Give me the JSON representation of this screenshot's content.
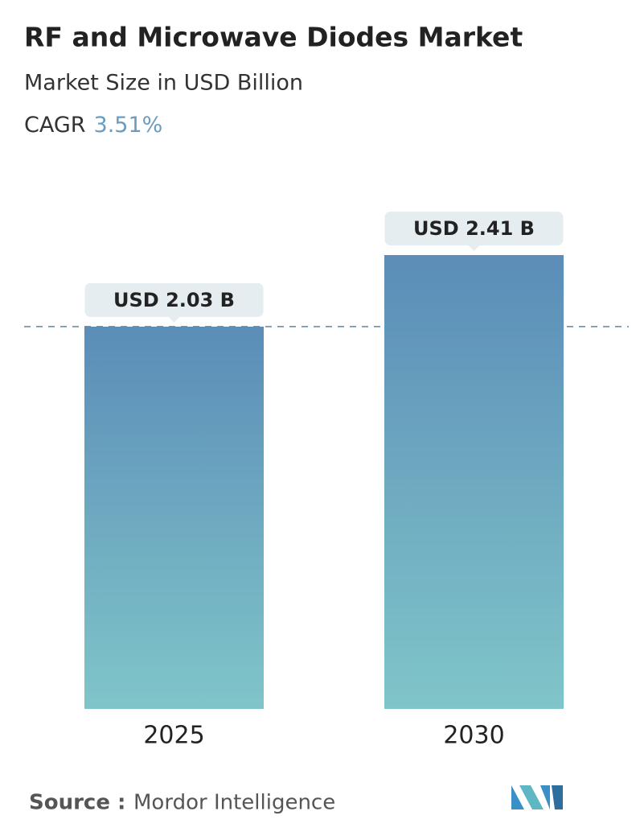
{
  "chart_data": {
    "type": "bar",
    "title": "RF and Microwave Diodes Market",
    "subtitle": "Market Size in USD Billion",
    "cagr_label": "CAGR",
    "cagr": "3.51%",
    "categories": [
      "2025",
      "2030"
    ],
    "values": [
      2.03,
      2.41
    ],
    "value_labels": [
      "USD 2.03 B",
      "USD 2.41 B"
    ],
    "color_top": "#5b8db8",
    "color_bottom": "#80c5c9",
    "source_label": "Source :",
    "source": "Mordor Intelligence"
  }
}
